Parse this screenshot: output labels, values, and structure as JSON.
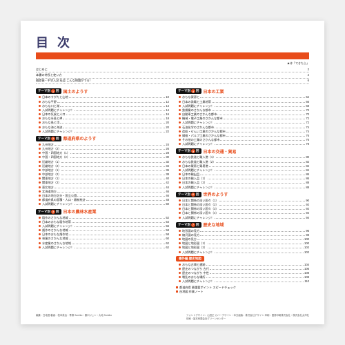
{
  "colors": {
    "accent": "#e84c1a",
    "heading": "#3a3a6a",
    "badge_bg": "#111111"
  },
  "title": "目 次",
  "legend": "★は「できたら」",
  "intro": [
    {
      "label": "はじめに",
      "page": "2"
    },
    {
      "label": "本書の特長と使い方",
      "page": "4"
    },
    {
      "label": "偏差値・中学入試 社会 こんな問題がでる！",
      "page": "6"
    }
  ],
  "chapters_left": [
    {
      "badge": "テーマ別",
      "num": "1",
      "title": "国土のようす",
      "items": [
        {
          "t": "日本のすがたと山地",
          "p": "10"
        },
        {
          "t": "おもな平野",
          "p": "12"
        },
        {
          "t": "おもな川と湖",
          "p": "14"
        },
        {
          "t": "入試問題にチャレンジ！",
          "p": "14"
        },
        {
          "t": "日本の気候と人口",
          "p": "16"
        },
        {
          "t": "おもな半島と岬",
          "p": "18"
        },
        {
          "t": "おもな島と湾",
          "p": "20"
        },
        {
          "t": "おもな海と海流",
          "p": "20"
        },
        {
          "t": "入試問題にチャレンジ！",
          "p": "22"
        }
      ]
    },
    {
      "badge": "テーマ別",
      "num": "2",
      "title": "都道府県のようす",
      "items": [
        {
          "t": "九州地方",
          "p": "24"
        },
        {
          "t": "九州地方（2）",
          "p": "26"
        },
        {
          "t": "中国・四国地方（1）",
          "p": "28"
        },
        {
          "t": "中国・四国地方（2）",
          "p": "30"
        },
        {
          "t": "近畿地方（1）",
          "p": "32"
        },
        {
          "t": "近畿地方（2）",
          "p": "34"
        },
        {
          "t": "中部地方（1）",
          "p": "36"
        },
        {
          "t": "中部地方（2）",
          "p": "38"
        },
        {
          "t": "関東地方（1）",
          "p": "40"
        },
        {
          "t": "関東地方（2）",
          "p": "42"
        },
        {
          "t": "東北地方",
          "p": "44"
        },
        {
          "t": "北海道地方",
          "p": "46"
        },
        {
          "t": "日本の地方区分・国立公園",
          "p": "46"
        },
        {
          "t": "都道府県の面積・人口・最新統計",
          "p": "48"
        },
        {
          "t": "入試問題にチャレンジ！",
          "p": "50"
        }
      ]
    },
    {
      "badge": "テーマ別",
      "num": "3",
      "title": "日本の農林水産業",
      "items": [
        {
          "t": "稲作のさかんな地域",
          "p": "52"
        },
        {
          "t": "日本のおもな稲作地帯",
          "p": "54"
        },
        {
          "t": "入試問題にチャレンジ！",
          "p": "56"
        },
        {
          "t": "畑作のさかんな地域",
          "p": "58"
        },
        {
          "t": "日本のおもな畑作地",
          "p": "58"
        },
        {
          "t": "林業のさかんな地域",
          "p": "60"
        },
        {
          "t": "水産業のさかんな地域",
          "p": "62"
        },
        {
          "t": "入試問題にチャレンジ！",
          "p": "62"
        }
      ]
    }
  ],
  "chapters_right": [
    {
      "badge": "テーマ別",
      "num": "4",
      "title": "日本の工業",
      "items": [
        {
          "t": "おもな資源と",
          "p": "64"
        },
        {
          "t": "日本の発電と工業地帯",
          "p": "66"
        },
        {
          "t": "入試問題にチャレンジ！",
          "p": "68"
        },
        {
          "t": "鉄鋼業のさかんな都市",
          "p": "70"
        },
        {
          "t": "自動車工業のさかんな都市",
          "p": "70"
        },
        {
          "t": "機械・電子工業のさかんな都市",
          "p": "72"
        },
        {
          "t": "入試問題にチャレンジ！",
          "p": "72"
        },
        {
          "t": "石油化学のさかんな都市",
          "p": "74"
        },
        {
          "t": "造船・せんい工業のさかんな都市",
          "p": "74"
        },
        {
          "t": "繊維・パルプ工業のさかんな都市",
          "p": "76"
        },
        {
          "t": "その他の工業のさかんな都市",
          "p": "76"
        },
        {
          "t": "入試問題にチャレンジ！",
          "p": "78"
        }
      ]
    },
    {
      "badge": "テーマ別",
      "num": "5",
      "title": "日本の交通・貿易",
      "items": [
        {
          "t": "おもな鉄道と輸入港（1）",
          "p": "80"
        },
        {
          "t": "おもな鉄道と輸入港（2）",
          "p": "82"
        },
        {
          "t": "日本の貿易と貿易港",
          "p": "82"
        },
        {
          "t": "入試問題にチャレンジ！",
          "p": "84"
        },
        {
          "t": "日本の輸出品",
          "p": "86"
        },
        {
          "t": "日本の輸入品（1）",
          "p": "86"
        },
        {
          "t": "日本の輸入品（2）",
          "p": "88"
        },
        {
          "t": "入試問題にチャレンジ！",
          "p": "88"
        }
      ]
    },
    {
      "badge": "テーマ別",
      "num": "6",
      "title": "世界のようす",
      "items": [
        {
          "t": "日本と関係の深い国々（1）",
          "p": "90"
        },
        {
          "t": "日本と関係の深い国々（2）",
          "p": "92"
        },
        {
          "t": "日本と関係の深い国々（3）",
          "p": "92"
        },
        {
          "t": "日本と関係の深い国々（4）",
          "p": "94"
        },
        {
          "t": "入試問題にチャレンジ！",
          "p": "94"
        }
      ]
    },
    {
      "badge": "テーマ別",
      "num": "7",
      "title": "歴史な地域",
      "items": [
        {
          "t": "地形図の見方",
          "p": "96"
        },
        {
          "t": "縮尺図の見方",
          "p": "98"
        },
        {
          "t": "地図の見方",
          "p": "100"
        },
        {
          "t": "地図と地形図（1）",
          "p": "100"
        },
        {
          "t": "地図と地形図（2）",
          "p": "102"
        },
        {
          "t": "入試問題にチャレンジ！",
          "p": "102"
        }
      ]
    },
    {
      "extra": true,
      "extra_label": "番外編 歴史地図",
      "items": [
        {
          "t": "おもな古墳と遺跡",
          "p": "104"
        },
        {
          "t": "歴史のつながり 古代",
          "p": "106"
        },
        {
          "t": "歴史のつながり 中世",
          "p": "108"
        },
        {
          "t": "戦乱のおもな場所",
          "p": "108"
        },
        {
          "t": "入試問題にチャレンジ！",
          "p": "110"
        }
      ]
    }
  ],
  "appendix": [
    {
      "t": "都道府県 最重要ポイント スピードチェック",
      "p": ""
    },
    {
      "t": "白地図 作業ノート",
      "p": ""
    }
  ],
  "footer_left": "編集：白地図\n著者：松本英治・青柳 Sumiko・藤口ジュン・大地 Sumiko",
  "footer_right": "フォントデザイン：山田正\nカバーデザイン・本文組版：株式会社デザイン\n印刷：図書印刷株式会社・株式会社太洋社印刷・製本有限会社グリーンセンター"
}
